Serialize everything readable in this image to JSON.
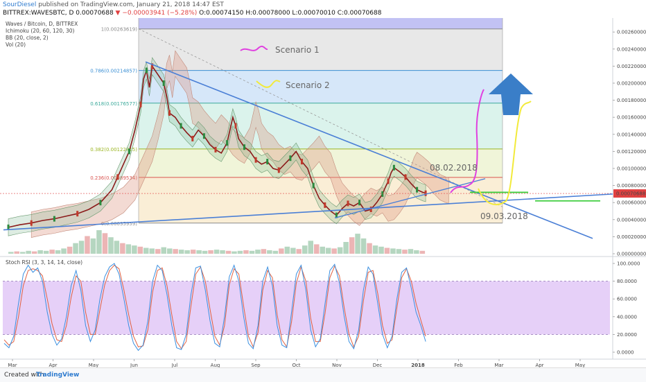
{
  "header": {
    "author": "SourDiesel",
    "published_text": " published on TradingView.com, January 21, 2018 14:47 EST",
    "symbol_line": "BITTREX:WAVESBTC, D 0.00070688",
    "change": " ▼ −0.00003941 (−5.28%)",
    "ohlc": " O:0.00074150 H:0.00078000 L:0.00070010 C:0.00070688"
  },
  "chart_data": {
    "type": "line",
    "title": "Waves / Bitcoin, D, BITTREX",
    "indicators": [
      "Ichimoku (20, 60, 120, 30)",
      "BB (20, close, 2)",
      "Vol (20)"
    ],
    "x_labels": [
      "Mar",
      "Apr",
      "May",
      "Jun",
      "Jul",
      "Aug",
      "Sep",
      "Oct",
      "Nov",
      "Dec",
      "2018",
      "Feb",
      "Mar",
      "Apr",
      "May"
    ],
    "price_ticks": [
      "0.00260000",
      "0.00240000",
      "0.00220000",
      "0.00200000",
      "0.00180000",
      "0.00160000",
      "0.00140000",
      "0.00120000",
      "0.00100000",
      "0.00080000",
      "0.00060000",
      "0.00040000",
      "0.00020000",
      "0.00000000"
    ],
    "price_ylim": [
      0.0,
      0.00265
    ],
    "current_price_label": "0.00070688",
    "current_price": 0.00070688,
    "fib_levels": [
      {
        "label": "1(0.00263619)",
        "value": 0.00263619,
        "color": "#8a8a8a"
      },
      {
        "label": "0.786(0.00214857)",
        "value": 0.00214857,
        "color": "#3a8fd4"
      },
      {
        "label": "0.618(0.00176577)",
        "value": 0.00176577,
        "color": "#3aa99a"
      },
      {
        "label": "0.382(0.00122815)",
        "value": 0.00122815,
        "color": "#9ab520"
      },
      {
        "label": "0.236(0.00089534)",
        "value": 0.00089534,
        "color": "#d9534f"
      },
      {
        "label": "0(0.00035959)",
        "value": 0.00035959,
        "color": "#8a8a8a"
      }
    ],
    "price_path": [
      [
        0,
        0.00031
      ],
      [
        4,
        0.00034
      ],
      [
        8,
        0.00036
      ],
      [
        12,
        0.00039
      ],
      [
        16,
        0.00041
      ],
      [
        20,
        0.00044
      ],
      [
        24,
        0.00047
      ],
      [
        28,
        0.00052
      ],
      [
        32,
        0.0006
      ],
      [
        36,
        0.00075
      ],
      [
        38,
        0.0009
      ],
      [
        40,
        0.00105
      ],
      [
        42,
        0.0012
      ],
      [
        44,
        0.00145
      ],
      [
        46,
        0.00175
      ],
      [
        47,
        0.00205
      ],
      [
        48,
        0.00215
      ],
      [
        49,
        0.00195
      ],
      [
        50,
        0.0022
      ],
      [
        52,
        0.0021
      ],
      [
        54,
        0.002
      ],
      [
        55,
        0.00185
      ],
      [
        56,
        0.00165
      ],
      [
        58,
        0.0016
      ],
      [
        60,
        0.0015
      ],
      [
        62,
        0.00142
      ],
      [
        64,
        0.00135
      ],
      [
        66,
        0.00145
      ],
      [
        68,
        0.00138
      ],
      [
        70,
        0.00128
      ],
      [
        72,
        0.00122
      ],
      [
        74,
        0.00118
      ],
      [
        76,
        0.0013
      ],
      [
        78,
        0.0016
      ],
      [
        79,
        0.0015
      ],
      [
        80,
        0.00135
      ],
      [
        82,
        0.00125
      ],
      [
        84,
        0.0012
      ],
      [
        86,
        0.0011
      ],
      [
        88,
        0.00105
      ],
      [
        90,
        0.00108
      ],
      [
        92,
        0.001
      ],
      [
        94,
        0.00098
      ],
      [
        96,
        0.00105
      ],
      [
        98,
        0.00112
      ],
      [
        100,
        0.0012
      ],
      [
        102,
        0.00108
      ],
      [
        104,
        0.001
      ],
      [
        106,
        0.0008
      ],
      [
        108,
        0.00065
      ],
      [
        110,
        0.00057
      ],
      [
        112,
        0.0005
      ],
      [
        114,
        0.00045
      ],
      [
        116,
        0.00053
      ],
      [
        118,
        0.00059
      ],
      [
        120,
        0.00056
      ],
      [
        122,
        0.0006
      ],
      [
        124,
        0.0005
      ],
      [
        126,
        0.00052
      ],
      [
        128,
        0.0006
      ],
      [
        130,
        0.0007
      ],
      [
        131,
        0.00078
      ],
      [
        132,
        0.00085
      ],
      [
        133,
        0.00095
      ],
      [
        134,
        0.00101
      ],
      [
        136,
        0.00096
      ],
      [
        138,
        0.0009
      ],
      [
        140,
        0.00082
      ],
      [
        142,
        0.00075
      ],
      [
        144,
        0.00072
      ],
      [
        145,
        0.00071
      ]
    ],
    "x_domain": [
      0,
      210
    ],
    "volume_profile": [
      3,
      4,
      3,
      5,
      4,
      6,
      5,
      7,
      6,
      9,
      12,
      18,
      22,
      30,
      26,
      40,
      35,
      28,
      22,
      18,
      16,
      14,
      12,
      10,
      9,
      8,
      11,
      9,
      8,
      7,
      6,
      7,
      6,
      5,
      6,
      7,
      6,
      5,
      4,
      5,
      6,
      5,
      7,
      8,
      6,
      5,
      9,
      12,
      10,
      8,
      14,
      22,
      16,
      12,
      10,
      9,
      11,
      20,
      28,
      34,
      26,
      18,
      14,
      12,
      10,
      9,
      8,
      7,
      8,
      6,
      5
    ],
    "stoch_rsi": {
      "label": "Stoch RSI (3, 3, 14, 14, close)",
      "ticks": [
        "100.0000",
        "80.0000",
        "60.0000",
        "40.0000",
        "20.0000",
        "0.0000"
      ],
      "ylim": [
        0,
        100
      ],
      "upper_band": 80,
      "lower_band": 20,
      "k": [
        10,
        5,
        18,
        55,
        88,
        98,
        90,
        95,
        80,
        45,
        20,
        8,
        15,
        40,
        75,
        92,
        70,
        30,
        12,
        25,
        60,
        85,
        96,
        100,
        88,
        60,
        30,
        10,
        2,
        8,
        35,
        80,
        98,
        92,
        65,
        30,
        5,
        3,
        20,
        65,
        95,
        97,
        70,
        35,
        10,
        6,
        40,
        85,
        98,
        80,
        40,
        10,
        4,
        30,
        80,
        96,
        75,
        30,
        8,
        5,
        45,
        88,
        98,
        70,
        25,
        6,
        15,
        55,
        92,
        99,
        78,
        40,
        12,
        4,
        25,
        70,
        96,
        88,
        55,
        20,
        5,
        18,
        60,
        90,
        95,
        72,
        45,
        30,
        12
      ],
      "d": [
        14,
        8,
        12,
        40,
        75,
        92,
        94,
        92,
        86,
        60,
        32,
        14,
        12,
        30,
        62,
        86,
        80,
        45,
        20,
        20,
        48,
        76,
        92,
        98,
        94,
        70,
        42,
        18,
        6,
        7,
        25,
        68,
        92,
        95,
        75,
        42,
        12,
        4,
        12,
        52,
        88,
        96,
        80,
        48,
        18,
        8,
        30,
        76,
        94,
        88,
        52,
        18,
        6,
        22,
        70,
        92,
        84,
        42,
        14,
        6,
        34,
        78,
        96,
        80,
        38,
        12,
        12,
        44,
        84,
        97,
        86,
        50,
        20,
        6,
        18,
        58,
        90,
        92,
        66,
        30,
        10,
        14,
        50,
        84,
        94,
        80,
        55,
        36,
        18
      ]
    }
  },
  "annotations": {
    "scenario1": "Scenario 1",
    "scenario2": "Scenario 2",
    "date1": "08.02.2018",
    "date2": "09.03.2018"
  },
  "colors": {
    "price": "#8b1a1a",
    "trendline": "#4a7fd6",
    "scenario1": "#e040e0",
    "scenario2": "#f2ea3a",
    "arrow": "#3a7ec8",
    "support": "#3ccc3c",
    "stoch_k": "#3a8fe0",
    "stoch_d": "#e06040"
  },
  "footer": {
    "created_with": "Created with",
    "brand": "TradingView"
  }
}
